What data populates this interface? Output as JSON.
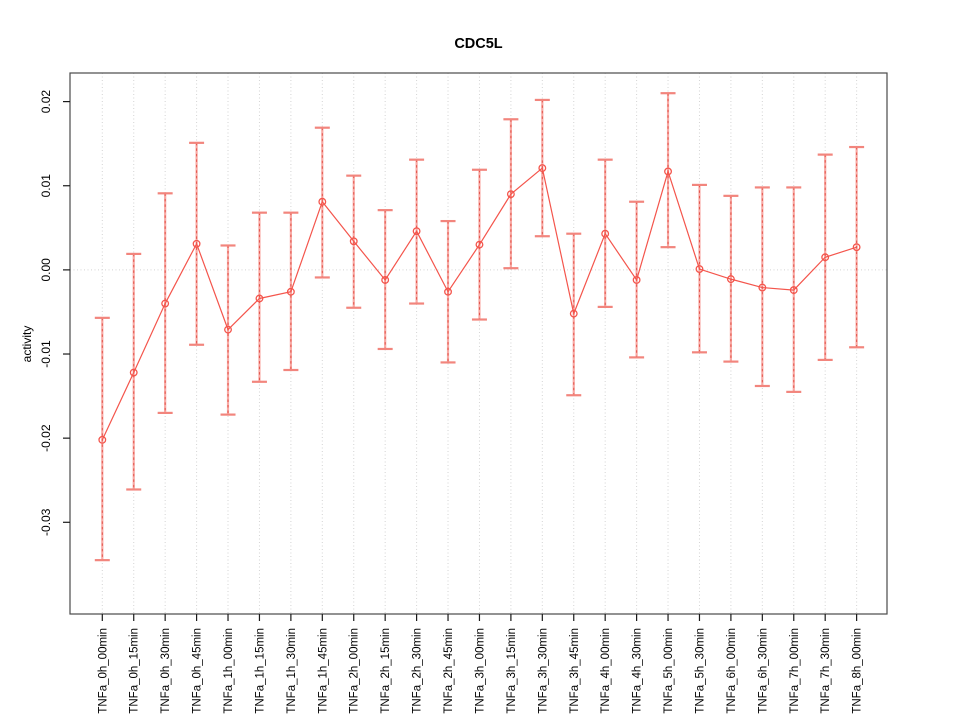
{
  "figure": {
    "background": "#FFFFFF"
  },
  "chart_data": {
    "type": "line",
    "title": "CDC5L",
    "ylabel": "activity",
    "xlabel": "",
    "legend": "none",
    "grid": "vertical dotted gridlines at each category plus dotted horizontal line at y=0",
    "categories": [
      "TNFa_0h_00min",
      "TNFa_0h_15min",
      "TNFa_0h_30min",
      "TNFa_0h_45min",
      "TNFa_1h_00min",
      "TNFa_1h_15min",
      "TNFa_1h_30min",
      "TNFa_1h_45min",
      "TNFa_2h_00min",
      "TNFa_2h_15min",
      "TNFa_2h_30min",
      "TNFa_2h_45min",
      "TNFa_3h_00min",
      "TNFa_3h_15min",
      "TNFa_3h_30min",
      "TNFa_3h_45min",
      "TNFa_4h_00min",
      "TNFa_4h_30min",
      "TNFa_5h_00min",
      "TNFa_5h_30min",
      "TNFa_6h_00min",
      "TNFa_6h_30min",
      "TNFa_7h_00min",
      "TNFa_7h_30min",
      "TNFa_8h_00min"
    ],
    "series": [
      {
        "name": "activity",
        "marker": "open-circle",
        "values": [
          -0.0202,
          -0.0122,
          -0.004,
          0.0031,
          -0.0071,
          -0.0034,
          -0.0026,
          0.0081,
          0.0034,
          -0.0012,
          0.0046,
          -0.0026,
          0.003,
          0.009,
          0.0121,
          -0.0052,
          0.0043,
          -0.0012,
          0.0117,
          0.0001,
          -0.0011,
          -0.0021,
          -0.0024,
          0.0015,
          0.0027
        ],
        "error_low": [
          -0.0345,
          -0.0261,
          -0.017,
          -0.0089,
          -0.0172,
          -0.0133,
          -0.0119,
          -0.0009,
          -0.0045,
          -0.0094,
          -0.004,
          -0.011,
          -0.0059,
          0.0002,
          0.004,
          -0.0149,
          -0.0044,
          -0.0104,
          0.0027,
          -0.0098,
          -0.0109,
          -0.0138,
          -0.0145,
          -0.0107,
          -0.0092
        ],
        "error_high": [
          -0.0057,
          0.0019,
          0.0091,
          0.0151,
          0.0029,
          0.0068,
          0.0068,
          0.0169,
          0.0112,
          0.0071,
          0.0131,
          0.0058,
          0.0119,
          0.0179,
          0.0202,
          0.0043,
          0.0131,
          0.0081,
          0.021,
          0.0101,
          0.0088,
          0.0098,
          0.0098,
          0.0137,
          0.0146
        ]
      }
    ],
    "yticks": [
      0.02,
      0.01,
      0.0,
      -0.01,
      -0.02,
      -0.03
    ],
    "ytick_labels": [
      "0.02",
      "0.01",
      "0.00",
      "-0.01",
      "-0.02",
      "-0.03"
    ],
    "ylim": [
      -0.0409,
      0.0234
    ],
    "colors": {
      "line": "#F4554C",
      "point": "#F4554C",
      "error_bar": "#F8A9A4",
      "error_bar_dash": "#E2544A",
      "error_cap": "#F2857D",
      "grid": "#D4D4D4",
      "frame": "#4A4A4A",
      "tick": "#1A1A1A",
      "text": "#000000"
    }
  }
}
